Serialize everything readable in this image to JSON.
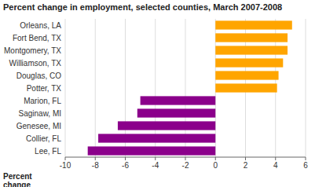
{
  "chart_data": {
    "type": "bar",
    "orientation": "horizontal",
    "title": "Percent change in employment, selected counties, March 2007-2008",
    "xlabel": "Percent\nchange",
    "categories": [
      "Lee, FL",
      "Collier, FL",
      "Genesee, MI",
      "Saginaw, MI",
      "Marion, FL",
      "Potter, TX",
      "Douglas, CO",
      "Williamson, TX",
      "Montgomery, TX",
      "Fort Bend, TX",
      "Orleans, LA"
    ],
    "values": [
      -8.5,
      -7.8,
      -6.5,
      -5.2,
      -5.0,
      4.1,
      4.2,
      4.5,
      4.8,
      4.8,
      5.1
    ],
    "colors": [
      "#8B008B",
      "#8B008B",
      "#8B008B",
      "#8B008B",
      "#8B008B",
      "#FFA500",
      "#FFA500",
      "#FFA500",
      "#FFA500",
      "#FFA500",
      "#FFA500"
    ],
    "xlim": [
      -10,
      6
    ],
    "xticks": [
      -10,
      -8,
      -6,
      -4,
      -2,
      0,
      2,
      4,
      6
    ],
    "grid": true
  }
}
